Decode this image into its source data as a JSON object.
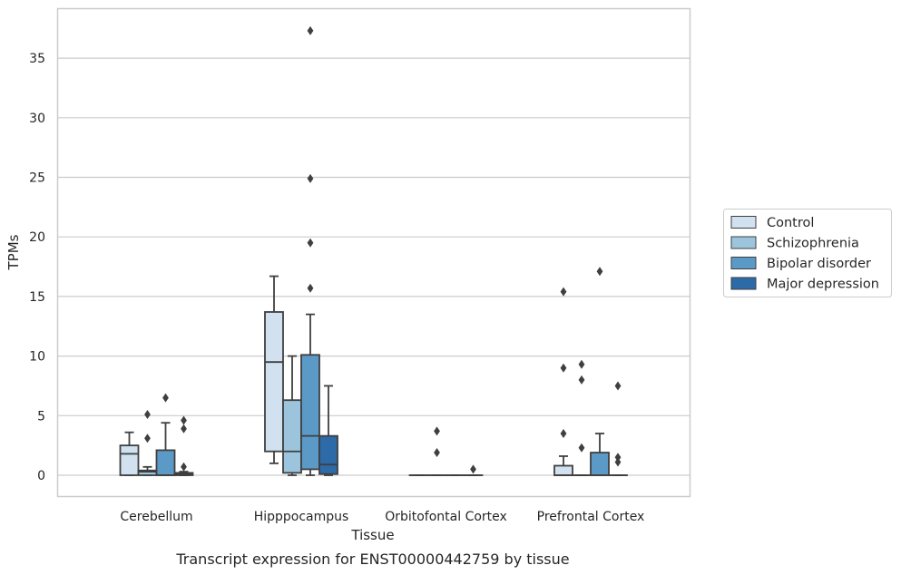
{
  "chart_data": {
    "type": "box",
    "xlabel": "Tissue",
    "ylabel": "TPMs",
    "caption": "Transcript expression for ENST00000442759 by tissue",
    "ylim": [
      -1.8,
      39
    ],
    "yticks": [
      0,
      5,
      10,
      15,
      20,
      25,
      30,
      35
    ],
    "grid": true,
    "legend_position": "right",
    "categories": [
      "Cerebellum",
      "Hipppocampus",
      "Orbitofontal Cortex",
      "Prefrontal Cortex"
    ],
    "series": [
      {
        "name": "Control",
        "color": "#d1e1ef",
        "boxes": [
          {
            "q1": 0,
            "median": 1.8,
            "q3": 2.5,
            "whislo": 0,
            "whishi": 3.6,
            "fliers": []
          },
          {
            "q1": 2.0,
            "median": 9.5,
            "q3": 13.7,
            "whislo": 1.0,
            "whishi": 16.7,
            "fliers": []
          },
          {
            "q1": 0,
            "median": 0,
            "q3": 0,
            "whislo": 0,
            "whishi": 0,
            "fliers": []
          },
          {
            "q1": 0,
            "median": 0,
            "q3": 0.8,
            "whislo": 0,
            "whishi": 1.6,
            "fliers": [
              3.5,
              9.0,
              15.4
            ]
          }
        ]
      },
      {
        "name": "Schizophrenia",
        "color": "#9cc5dd",
        "boxes": [
          {
            "q1": 0,
            "median": 0.3,
            "q3": 0.4,
            "whislo": 0,
            "whishi": 0.7,
            "fliers": [
              3.1,
              5.1
            ]
          },
          {
            "q1": 0.2,
            "median": 2.0,
            "q3": 6.3,
            "whislo": 0,
            "whishi": 10.0,
            "fliers": []
          },
          {
            "q1": 0,
            "median": 0,
            "q3": 0,
            "whislo": 0,
            "whishi": 0,
            "fliers": [
              1.9,
              3.7
            ]
          },
          {
            "q1": 0,
            "median": 0,
            "q3": 0,
            "whislo": 0,
            "whishi": 0,
            "fliers": [
              2.3,
              8.0,
              9.3
            ]
          }
        ]
      },
      {
        "name": "Bipolar disorder",
        "color": "#5b9ac7",
        "boxes": [
          {
            "q1": 0,
            "median": 0,
            "q3": 2.1,
            "whislo": 0,
            "whishi": 4.4,
            "fliers": [
              6.5
            ]
          },
          {
            "q1": 0.5,
            "median": 3.3,
            "q3": 10.1,
            "whislo": 0,
            "whishi": 13.5,
            "fliers": [
              15.7,
              19.5,
              24.9,
              37.3
            ]
          },
          {
            "q1": 0,
            "median": 0,
            "q3": 0,
            "whislo": 0,
            "whishi": 0,
            "fliers": []
          },
          {
            "q1": 0,
            "median": 0,
            "q3": 1.9,
            "whislo": 0,
            "whishi": 3.5,
            "fliers": [
              17.1
            ]
          }
        ]
      },
      {
        "name": "Major depression",
        "color": "#2d6aa8",
        "boxes": [
          {
            "q1": 0,
            "median": 0.1,
            "q3": 0.2,
            "whislo": 0,
            "whishi": 0.3,
            "fliers": [
              0.7,
              3.9,
              4.6
            ]
          },
          {
            "q1": 0.1,
            "median": 0.9,
            "q3": 3.3,
            "whislo": 0,
            "whishi": 7.5,
            "fliers": []
          },
          {
            "q1": 0,
            "median": 0,
            "q3": 0,
            "whislo": 0,
            "whishi": 0,
            "fliers": [
              0.5
            ]
          },
          {
            "q1": 0,
            "median": 0,
            "q3": 0,
            "whislo": 0,
            "whishi": 0,
            "fliers": [
              1.1,
              1.5,
              7.5
            ]
          }
        ]
      }
    ]
  }
}
